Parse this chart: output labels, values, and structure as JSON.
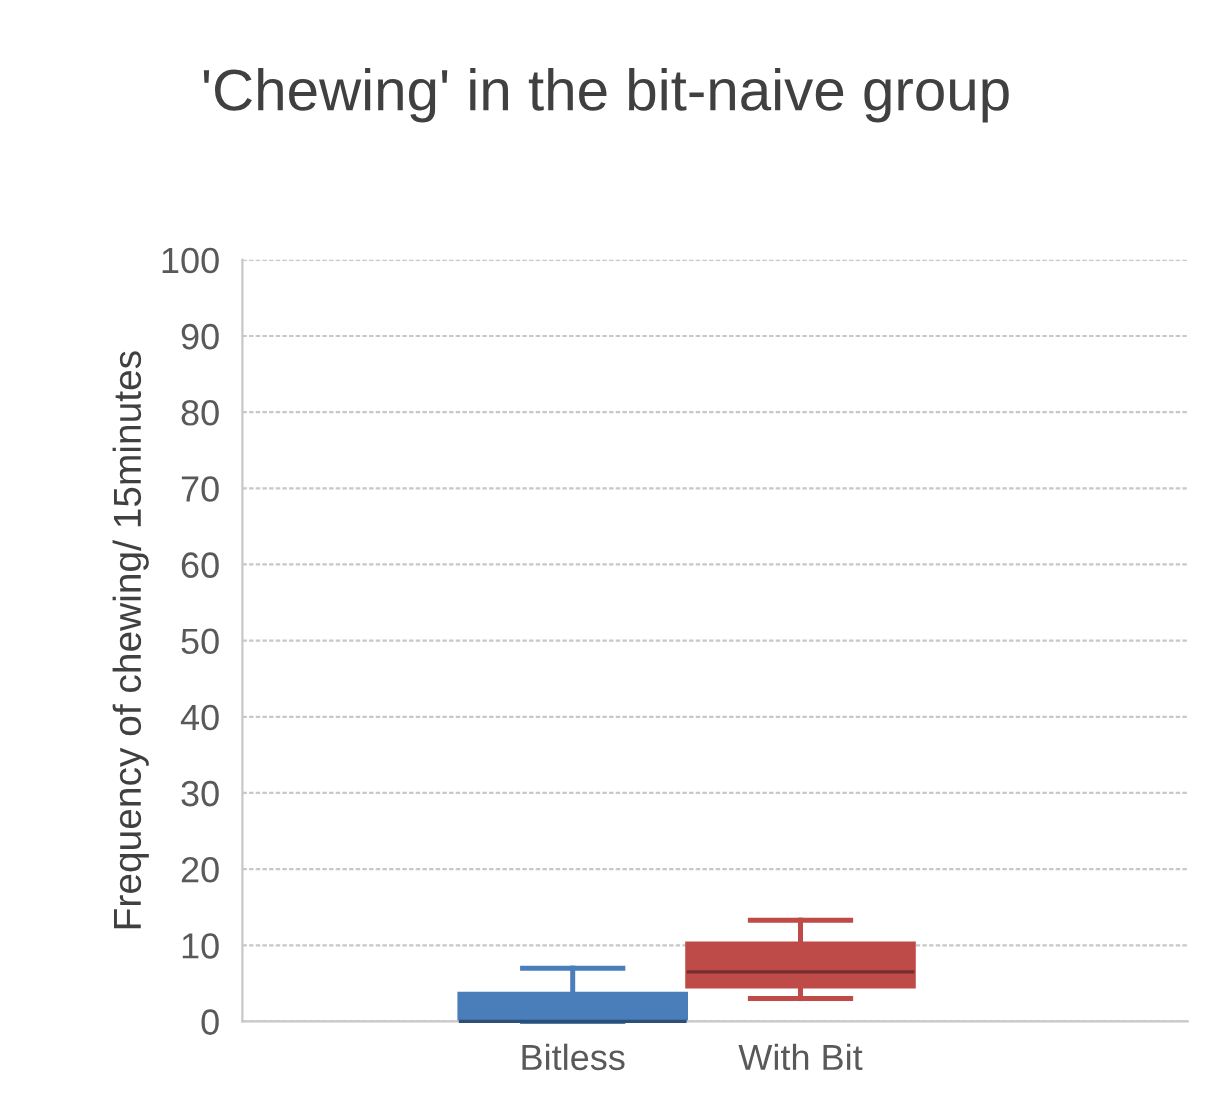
{
  "chart_data": {
    "type": "box",
    "title": "'Chewing' in the bit-naive group",
    "ylabel": "Frequency of chewing/ 15minutes",
    "categories": [
      "Bitless",
      "With Bit"
    ],
    "colors": [
      "#4a7ebb",
      "#be4b48"
    ],
    "boxes": [
      {
        "low": 0,
        "q1": 0,
        "median": 0,
        "q3": 3.7,
        "high": 7
      },
      {
        "low": 3,
        "q1": 4.5,
        "median": 6.5,
        "q3": 10.3,
        "high": 13.3
      }
    ],
    "ylim": [
      0,
      100
    ],
    "yticks": [
      0,
      10,
      20,
      30,
      40,
      50,
      60,
      70,
      80,
      90,
      100
    ],
    "grid": "y",
    "legend": false
  }
}
